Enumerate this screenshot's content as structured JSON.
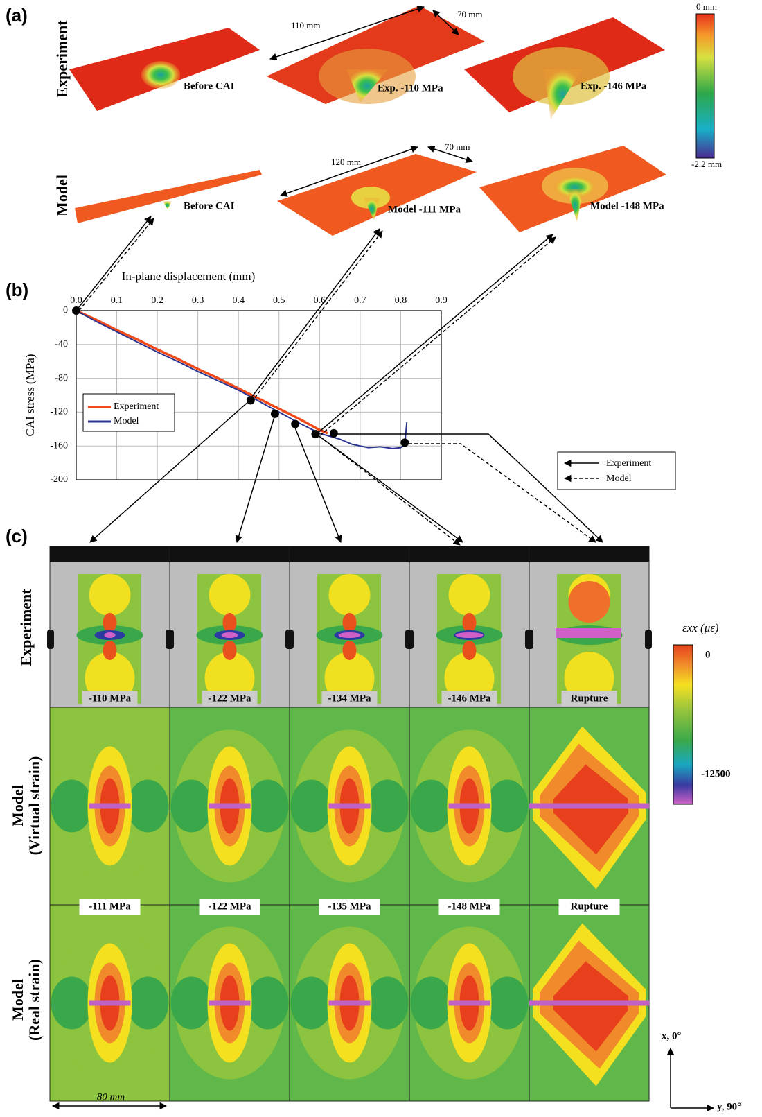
{
  "panel_a": {
    "label": "(a)",
    "rows": [
      "Experiment",
      "Model"
    ],
    "captions": [
      "Before CAI",
      "Exp. -110 MPa",
      "Exp. -146 MPa",
      "Before CAI",
      "Model -111 MPa",
      "Model -148 MPa"
    ],
    "dimensions": [
      "110 mm",
      "70 mm",
      "120 mm",
      "70 mm"
    ],
    "colorbar": {
      "top": "0 mm",
      "bottom": "-2.2 mm"
    }
  },
  "panel_b": {
    "label": "(b)",
    "arrow_legend": [
      "Experiment",
      "Model"
    ]
  },
  "chart_data": {
    "type": "line",
    "x_label": "In-plane displacement (mm)",
    "y_label": "CAI stress (MPa)",
    "xlim": [
      0,
      0.9
    ],
    "xticks": [
      {
        "value": 0,
        "label": "0.0"
      },
      0.1,
      0.2,
      0.3,
      0.4,
      0.5,
      0.6,
      0.7,
      0.8,
      0.9
    ],
    "ylim": [
      -200,
      0
    ],
    "yticks": [
      0,
      -40,
      -80,
      -120,
      -160,
      -200
    ],
    "grid": true,
    "series": [
      {
        "name": "Experiment",
        "color": "#f04a1a",
        "x": [
          0,
          0.05,
          0.1,
          0.15,
          0.2,
          0.25,
          0.3,
          0.35,
          0.4,
          0.45,
          0.5,
          0.55,
          0.6,
          0.62
        ],
        "values": [
          0,
          -11,
          -23,
          -34,
          -46,
          -57,
          -69,
          -80,
          -92,
          -104,
          -116,
          -128,
          -141,
          -145
        ]
      },
      {
        "name": "Model",
        "color": "#2b3590",
        "x": [
          0,
          0.05,
          0.1,
          0.15,
          0.2,
          0.25,
          0.3,
          0.35,
          0.4,
          0.45,
          0.5,
          0.55,
          0.6,
          0.65,
          0.68,
          0.7,
          0.72,
          0.75,
          0.78,
          0.8,
          0.81,
          0.815
        ],
        "values": [
          0,
          -13,
          -25,
          -37,
          -49,
          -60,
          -72,
          -83,
          -94,
          -107,
          -120,
          -133,
          -145,
          -152,
          -158,
          -160,
          -162,
          -161,
          -163,
          -162,
          -158,
          -132
        ]
      }
    ],
    "points": {
      "x": [
        0,
        0.43,
        0.49,
        0.54,
        0.59,
        0.635,
        0.81
      ],
      "y": [
        0,
        -106,
        -122,
        -134,
        -146,
        -145,
        -156
      ]
    }
  },
  "panel_c": {
    "label": "(c)",
    "rows": [
      "Experiment",
      "Model",
      "(Virtual strain)",
      "Model",
      "(Real strain)"
    ],
    "experiment_labels": [
      "-110 MPa",
      "-122 MPa",
      "-134 MPa",
      "-146 MPa",
      "Rupture"
    ],
    "model_labels": [
      "-111 MPa",
      "-122 MPa",
      "-135 MPa",
      "-148 MPa",
      "Rupture"
    ],
    "scale": "80 mm",
    "colorbar": {
      "title": "εxx (με)",
      "top": "0",
      "bottom": "-12500"
    },
    "axes": [
      "x, 0°",
      "y, 90°"
    ]
  }
}
